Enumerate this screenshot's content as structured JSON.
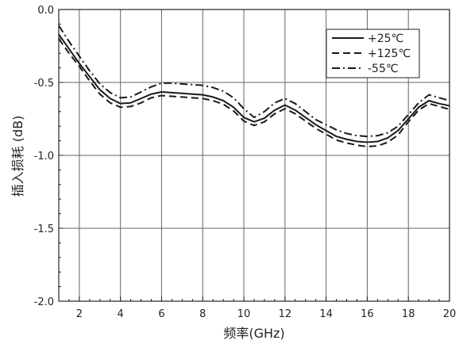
{
  "chart_data": {
    "type": "line",
    "title": "",
    "xlabel": "频率(GHz)",
    "ylabel": "插入损耗 (dB)",
    "xlim": [
      1,
      20
    ],
    "ylim": [
      -2.0,
      0.0
    ],
    "x_ticks": [
      2,
      4,
      6,
      8,
      10,
      12,
      14,
      16,
      18,
      20
    ],
    "x_tick_labels": [
      "2",
      "4",
      "6",
      "8",
      "10",
      "12",
      "14",
      "16",
      "18",
      "20"
    ],
    "y_ticks": [
      0.0,
      -0.5,
      -1.0,
      -1.5,
      -2.0
    ],
    "y_tick_labels": [
      "0.0",
      "-0.5",
      "-1.0",
      "-1.5",
      "-2.0"
    ],
    "grid": true,
    "legend_position": "top-right",
    "x": [
      1.0,
      1.5,
      2.0,
      2.5,
      3.0,
      3.5,
      4.0,
      4.5,
      5.0,
      5.5,
      6.0,
      6.5,
      7.0,
      7.5,
      8.0,
      8.5,
      9.0,
      9.5,
      10.0,
      10.5,
      11.0,
      11.5,
      12.0,
      12.5,
      13.0,
      13.5,
      14.0,
      14.5,
      15.0,
      15.5,
      16.0,
      16.5,
      17.0,
      17.5,
      18.0,
      18.5,
      19.0,
      19.5,
      20.0
    ],
    "series": [
      {
        "name": "+25℃",
        "dash": "solid",
        "values": [
          -0.17,
          -0.27,
          -0.37,
          -0.46,
          -0.55,
          -0.61,
          -0.645,
          -0.64,
          -0.61,
          -0.58,
          -0.565,
          -0.57,
          -0.575,
          -0.58,
          -0.585,
          -0.6,
          -0.625,
          -0.67,
          -0.74,
          -0.77,
          -0.745,
          -0.69,
          -0.655,
          -0.69,
          -0.74,
          -0.79,
          -0.83,
          -0.87,
          -0.89,
          -0.905,
          -0.91,
          -0.905,
          -0.88,
          -0.83,
          -0.75,
          -0.67,
          -0.625,
          -0.645,
          -0.66
        ]
      },
      {
        "name": "+125℃",
        "dash": "dashed",
        "values": [
          -0.2,
          -0.3,
          -0.39,
          -0.49,
          -0.58,
          -0.64,
          -0.67,
          -0.665,
          -0.64,
          -0.605,
          -0.59,
          -0.595,
          -0.6,
          -0.605,
          -0.61,
          -0.625,
          -0.65,
          -0.695,
          -0.765,
          -0.795,
          -0.77,
          -0.715,
          -0.68,
          -0.715,
          -0.765,
          -0.815,
          -0.855,
          -0.895,
          -0.915,
          -0.93,
          -0.94,
          -0.935,
          -0.91,
          -0.86,
          -0.77,
          -0.69,
          -0.645,
          -0.665,
          -0.685
        ]
      },
      {
        "name": "-55℃",
        "dash": "dashdot",
        "values": [
          -0.11,
          -0.22,
          -0.32,
          -0.42,
          -0.51,
          -0.57,
          -0.605,
          -0.6,
          -0.565,
          -0.53,
          -0.505,
          -0.505,
          -0.51,
          -0.515,
          -0.52,
          -0.535,
          -0.56,
          -0.605,
          -0.68,
          -0.74,
          -0.7,
          -0.64,
          -0.61,
          -0.645,
          -0.7,
          -0.755,
          -0.79,
          -0.825,
          -0.85,
          -0.865,
          -0.87,
          -0.865,
          -0.845,
          -0.8,
          -0.72,
          -0.64,
          -0.585,
          -0.605,
          -0.625
        ]
      }
    ],
    "colors": {
      "line": "#1a1a1a",
      "grid": "#666666",
      "axis": "#222222",
      "background": "#ffffff"
    }
  }
}
